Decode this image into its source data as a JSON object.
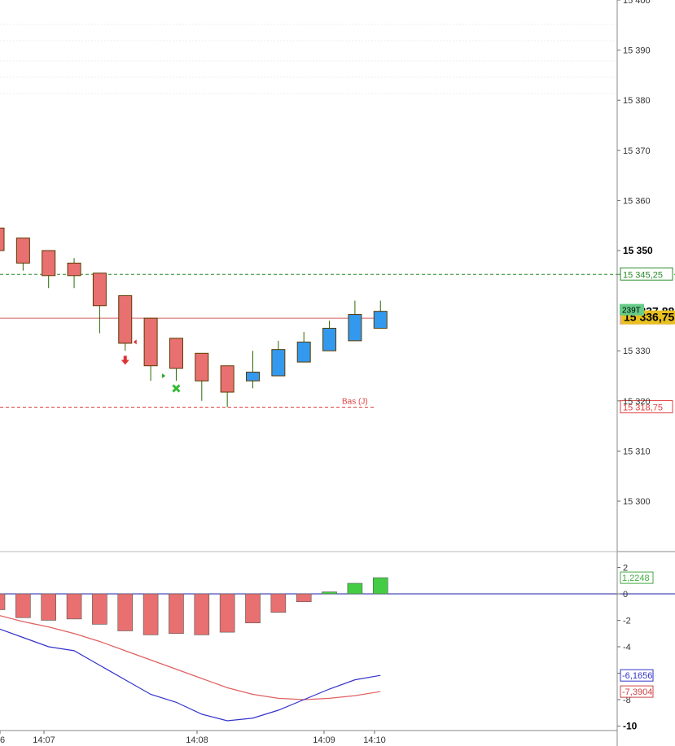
{
  "chart_data": {
    "type": "candlestick",
    "colors": {
      "bull": "#3399ee",
      "bear": "#e87070",
      "candle_outline": "#5a3a00",
      "wick": "#2a6a00",
      "ref_high": "#2a8a2a",
      "ref_low": "#e04040",
      "last_close_line": "#d06060",
      "hist_neg": "#e87070",
      "hist_pos": "#44cc44",
      "macd_line": "#3333cc",
      "signal_line": "#e06060",
      "zero_line": "#2222aa",
      "badge_last": "#e8c020",
      "badge_volume": "#66cc88"
    },
    "price_axis": {
      "ticks": [
        "15 400",
        "15 390",
        "15 380",
        "15 370",
        "15 360",
        "15 350",
        "15 330",
        "15 320",
        "15 310",
        "15 300"
      ],
      "bold_ticks": [
        "15 350"
      ],
      "ylim": [
        15292.5,
        15400
      ]
    },
    "time_axis": {
      "labels": [
        "6",
        "14:07",
        "14:08",
        "14:09",
        "14:10"
      ]
    },
    "candles": [
      {
        "open": 15354.5,
        "high": 15354.5,
        "low": 15350.0,
        "close": 15350.0
      },
      {
        "open": 15352.5,
        "high": 15352.5,
        "low": 15346.0,
        "close": 15347.5
      },
      {
        "open": 15350.0,
        "high": 15350.0,
        "low": 15342.5,
        "close": 15345.0
      },
      {
        "open": 15347.5,
        "high": 15348.5,
        "low": 15342.5,
        "close": 15345.0
      },
      {
        "open": 15345.5,
        "high": 15345.5,
        "low": 15333.5,
        "close": 15339.0
      },
      {
        "open": 15341.0,
        "high": 15341.0,
        "low": 15330.0,
        "close": 15331.5
      },
      {
        "open": 15336.5,
        "high": 15336.5,
        "low": 15324.0,
        "close": 15327.0
      },
      {
        "open": 15332.5,
        "high": 15332.5,
        "low": 15324.0,
        "close": 15326.5
      },
      {
        "open": 15329.5,
        "high": 15329.5,
        "low": 15320.0,
        "close": 15324.0
      },
      {
        "open": 15327.0,
        "high": 15327.0,
        "low": 15318.75,
        "close": 15321.75
      },
      {
        "open": 15324.0,
        "high": 15330.0,
        "low": 15322.5,
        "close": 15325.75
      },
      {
        "open": 15325.0,
        "high": 15332.0,
        "low": 15325.0,
        "close": 15330.25
      },
      {
        "open": 15327.75,
        "high": 15333.75,
        "low": 15327.75,
        "close": 15331.75
      },
      {
        "open": 15330.0,
        "high": 15336.0,
        "low": 15330.0,
        "close": 15334.5
      },
      {
        "open": 15332.0,
        "high": 15340.0,
        "low": 15332.0,
        "close": 15337.25
      },
      {
        "open": 15334.5,
        "high": 15340.0,
        "low": 15334.5,
        "close": 15337.88
      }
    ],
    "signals": [
      {
        "type": "down-arrow",
        "index": 5,
        "price": 15329.0
      },
      {
        "type": "left-triangle",
        "index": 5,
        "price": 15331.75
      },
      {
        "type": "right-triangle",
        "index": 6,
        "price": 15325.0
      },
      {
        "type": "cross",
        "index": 7,
        "price": 15322.5
      }
    ],
    "reference_lines": [
      {
        "name": "high-ref",
        "price": 15345.25,
        "label": "15 345,25",
        "style": "dashed"
      },
      {
        "name": "low-ref",
        "price": 15318.75,
        "label": "15 318,75",
        "style": "dashed",
        "caption": "Bas (J)"
      },
      {
        "name": "last-close",
        "price": 15336.5,
        "label": "15 336,50",
        "style": "solid"
      }
    ],
    "price_badges": {
      "last": "15 337,88",
      "volume": "239T",
      "current": "15 336,75"
    },
    "oscillator": {
      "ticks": [
        "2",
        "0",
        "-2",
        "-4",
        "-6",
        "-8",
        "-10"
      ],
      "bold_ticks": [
        "-10"
      ],
      "ylim": [
        -10.5,
        2.5
      ],
      "histogram": [
        -1.2,
        -1.8,
        -2.0,
        -1.9,
        -2.3,
        -2.8,
        -3.1,
        -3.0,
        -3.1,
        -2.9,
        -2.2,
        -1.4,
        -0.6,
        0.15,
        0.8,
        1.2248
      ],
      "macd": [
        -2.6,
        -3.3,
        -4.0,
        -4.3,
        -5.4,
        -6.5,
        -7.6,
        -8.2,
        -9.1,
        -9.6,
        -9.4,
        -8.8,
        -8.0,
        -7.2,
        -6.5,
        -6.1656
      ],
      "signal": [
        -1.6,
        -2.1,
        -2.5,
        -3.0,
        -3.6,
        -4.3,
        -5.0,
        -5.7,
        -6.4,
        -7.1,
        -7.6,
        -7.9,
        -8.0,
        -7.9,
        -7.7,
        -7.3904
      ],
      "badges": [
        {
          "value": 1.2248,
          "label": "1,2248",
          "color": "#44aa44"
        },
        {
          "value": -6.1656,
          "label": "-6,1656",
          "color": "#3333cc"
        },
        {
          "value": -7.3904,
          "label": "-7,3904",
          "color": "#cc4444"
        }
      ]
    }
  }
}
